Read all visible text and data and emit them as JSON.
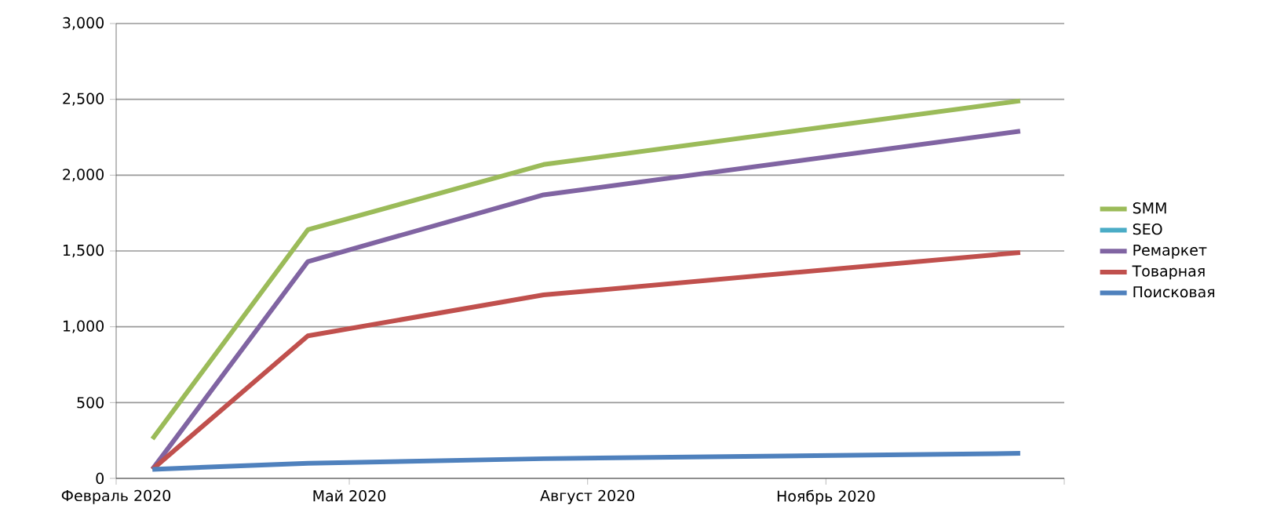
{
  "chart_data": {
    "type": "line",
    "x": [
      "2020-02-15",
      "2020-04-15",
      "2020-07-15",
      "2021-01-15"
    ],
    "series": [
      {
        "name": "SMM",
        "color": "#9bbb59",
        "values": [
          260,
          1640,
          2070,
          2490
        ]
      },
      {
        "name": "SEO",
        "color": "#4bacc6",
        "values": [
          null,
          null,
          null,
          null
        ]
      },
      {
        "name": "Ремаркет",
        "color": "#8064a2",
        "values": [
          60,
          1430,
          1870,
          2290
        ]
      },
      {
        "name": "Товарная",
        "color": "#c0504d",
        "values": [
          60,
          940,
          1210,
          1490
        ]
      },
      {
        "name": "Поисковая",
        "color": "#4f81bd",
        "values": [
          60,
          100,
          130,
          165
        ]
      }
    ],
    "xlim": [
      "2020-02",
      "2021-02"
    ],
    "xticks": [
      {
        "value": "2020-02",
        "label": "Февраль 2020"
      },
      {
        "value": "2020-05",
        "label": "Май 2020"
      },
      {
        "value": "2020-08",
        "label": "Август 2020"
      },
      {
        "value": "2020-11",
        "label": "Ноябрь 2020"
      },
      {
        "value": "2021-02",
        "label": null
      }
    ],
    "ylim": [
      0,
      3000
    ],
    "yticks": [
      0,
      {
        "value": 500,
        "label": "500"
      },
      {
        "value": 1000,
        "label": "1,000"
      },
      {
        "value": 1500,
        "label": "1,500"
      },
      {
        "value": 2000,
        "label": "2,000"
      },
      {
        "value": 2500,
        "label": "2,500"
      },
      {
        "value": 3000,
        "label": "3,000"
      }
    ],
    "grid": "y",
    "legend": "right",
    "marker": "none",
    "line_style": "solid"
  }
}
